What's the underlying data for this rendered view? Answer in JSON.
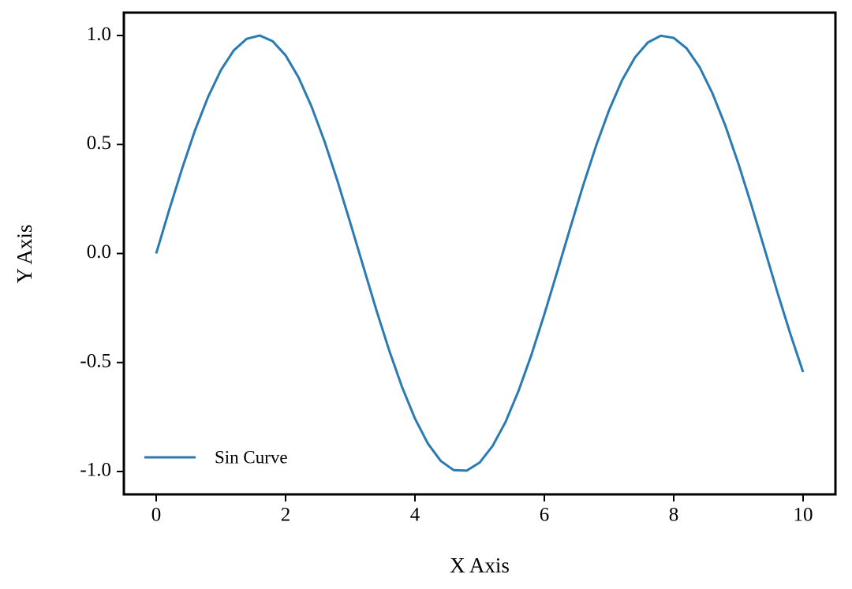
{
  "chart_data": {
    "type": "line",
    "x_label": "X Axis",
    "y_label": "Y Axis",
    "x": [
      0,
      0.2,
      0.4,
      0.6,
      0.8,
      1.0,
      1.2,
      1.4,
      1.6,
      1.8,
      2.0,
      2.2,
      2.4,
      2.6,
      2.8,
      3.0,
      3.2,
      3.4,
      3.6,
      3.8,
      4.0,
      4.2,
      4.4,
      4.6,
      4.8,
      5.0,
      5.2,
      5.4,
      5.6,
      5.8,
      6.0,
      6.2,
      6.4,
      6.6,
      6.8,
      7.0,
      7.2,
      7.4,
      7.6,
      7.8,
      8.0,
      8.2,
      8.4,
      8.6,
      8.8,
      9.0,
      9.2,
      9.4,
      9.6,
      9.8,
      10.0
    ],
    "series": [
      {
        "name": "Sin Curve",
        "color": "#2a7ab3",
        "values": [
          0,
          0.199,
          0.389,
          0.565,
          0.717,
          0.841,
          0.932,
          0.985,
          1.0,
          0.974,
          0.909,
          0.808,
          0.675,
          0.516,
          0.335,
          0.141,
          -0.058,
          -0.256,
          -0.443,
          -0.612,
          -0.757,
          -0.872,
          -0.952,
          -0.994,
          -0.996,
          -0.959,
          -0.883,
          -0.773,
          -0.631,
          -0.465,
          -0.279,
          -0.083,
          0.117,
          0.312,
          0.494,
          0.657,
          0.794,
          0.899,
          0.968,
          0.999,
          0.989,
          0.941,
          0.855,
          0.734,
          0.585,
          0.412,
          0.223,
          0.025,
          -0.175,
          -0.366,
          -0.544
        ]
      }
    ],
    "xlim": [
      -0.5,
      10.5
    ],
    "ylim": [
      -1.105,
      1.105
    ],
    "xticks": [
      0,
      2,
      4,
      6,
      8,
      10
    ],
    "yticks": [
      {
        "value": -1.0,
        "label": "-1.0"
      },
      {
        "value": -0.5,
        "label": "-0.5"
      },
      {
        "value": 0.0,
        "label": "0.0"
      },
      {
        "value": 0.5,
        "label": "0.5"
      },
      {
        "value": 1.0,
        "label": "1.0"
      }
    ],
    "grid": false,
    "legend": "lower left"
  }
}
